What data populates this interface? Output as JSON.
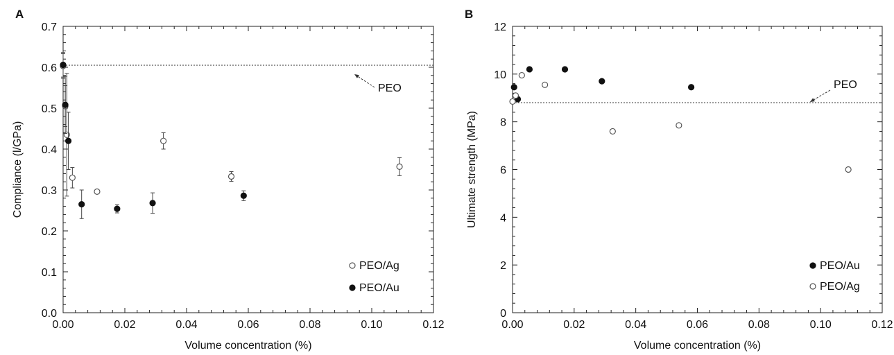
{
  "chart_data": [
    {
      "panel": "A",
      "type": "scatter",
      "xlabel": "Volume concentration (%)",
      "ylabel": "Compliance (l/GPa)",
      "xlim": [
        0.0,
        0.12
      ],
      "ylim": [
        0.0,
        0.7
      ],
      "xticks": [
        "0.00",
        "0.02",
        "0.04",
        "0.06",
        "0.08",
        "0.10",
        "0.12"
      ],
      "yticks": [
        "0.0",
        "0.1",
        "0.2",
        "0.3",
        "0.4",
        "0.5",
        "0.6",
        "0.7"
      ],
      "legend_position": "bottom-right",
      "reference_line": {
        "label": "PEO",
        "y": 0.605
      },
      "series": [
        {
          "name": "PEO/Ag",
          "marker": "open-circle",
          "x": [
            0.0,
            0.0007,
            0.0012,
            0.003,
            0.011,
            0.0325,
            0.0545,
            0.109
          ],
          "y": [
            0.603,
            0.505,
            0.435,
            0.33,
            0.296,
            0.42,
            0.333,
            0.357
          ],
          "err": [
            0.03,
            0.05,
            0.15,
            0.025,
            0.0,
            0.02,
            0.012,
            0.022
          ]
        },
        {
          "name": "PEO/Au",
          "marker": "filled-circle",
          "x": [
            0.0,
            0.0007,
            0.0017,
            0.006,
            0.0175,
            0.029,
            0.0585
          ],
          "y": [
            0.606,
            0.508,
            0.42,
            0.265,
            0.254,
            0.268,
            0.286
          ],
          "err": [
            0.03,
            0.07,
            0.07,
            0.035,
            0.01,
            0.025,
            0.012
          ]
        }
      ]
    },
    {
      "panel": "B",
      "type": "scatter",
      "xlabel": "Volume concentration (%)",
      "ylabel": "Ultimate strength (MPa)",
      "xlim": [
        0.0,
        0.12
      ],
      "ylim": [
        0,
        12
      ],
      "xticks": [
        "0.00",
        "0.02",
        "0.04",
        "0.06",
        "0.08",
        "0.10",
        "0.12"
      ],
      "yticks": [
        "0",
        "2",
        "4",
        "6",
        "8",
        "10",
        "12"
      ],
      "legend_position": "bottom-right",
      "reference_line": {
        "label": "PEO",
        "y": 8.8
      },
      "series": [
        {
          "name": "PEO/Au",
          "marker": "filled-circle",
          "x": [
            0.0005,
            0.0017,
            0.0055,
            0.017,
            0.029,
            0.058
          ],
          "y": [
            9.45,
            8.95,
            10.2,
            10.2,
            9.7,
            9.45
          ]
        },
        {
          "name": "PEO/Ag",
          "marker": "open-circle",
          "x": [
            0.0,
            0.001,
            0.003,
            0.0105,
            0.0325,
            0.054,
            0.109
          ],
          "y": [
            8.85,
            9.1,
            9.95,
            9.55,
            7.6,
            7.85,
            6.0
          ]
        }
      ]
    }
  ]
}
